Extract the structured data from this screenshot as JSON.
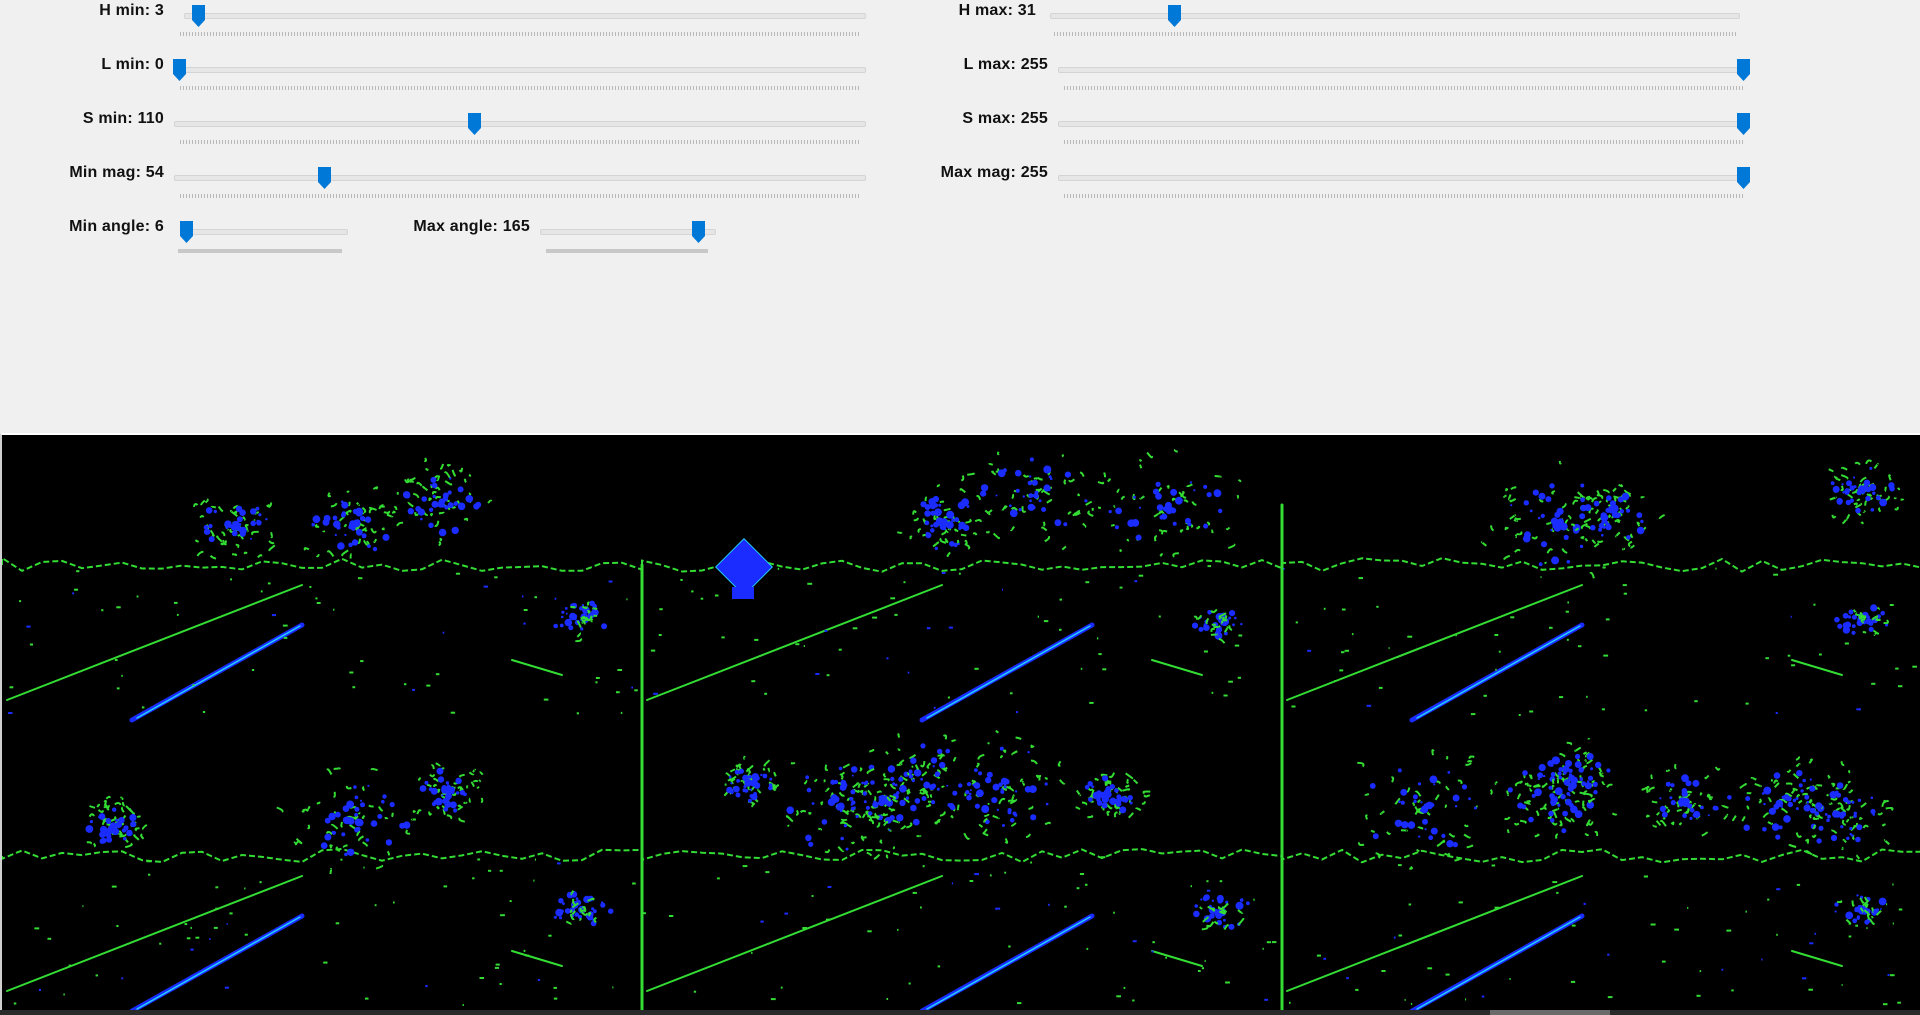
{
  "sliders": {
    "h_min": {
      "label": "H min: 3",
      "value": 3,
      "max": 255
    },
    "h_max": {
      "label": "H max: 31",
      "value": 31,
      "max": 179
    },
    "l_min": {
      "label": "L min: 0",
      "value": 0,
      "max": 255
    },
    "l_max": {
      "label": "L max: 255",
      "value": 255,
      "max": 255
    },
    "s_min": {
      "label": "S min: 110",
      "value": 110,
      "max": 255
    },
    "s_max": {
      "label": "S max: 255",
      "value": 255,
      "max": 255
    },
    "min_mag": {
      "label": "Min mag: 54",
      "value": 54,
      "max": 255
    },
    "max_mag": {
      "label": "Max mag: 255",
      "value": 255,
      "max": 255
    },
    "min_angle": {
      "label": "Min angle: 6",
      "value": 6,
      "max": 180
    },
    "max_angle": {
      "label": "Max angle: 165",
      "value": 165,
      "max": 180
    }
  },
  "colors": {
    "panel_bg": "#f0f0f0",
    "thumb": "#0078d7",
    "image_bg": "#000000",
    "edge_green": "#33dd33",
    "mask_blue": "#1a2cff",
    "highlight_cyan": "#22d0ff"
  },
  "viewer": {
    "description_icon": "image-grid-icon",
    "grid": {
      "rows": 2,
      "cols": 3
    }
  }
}
